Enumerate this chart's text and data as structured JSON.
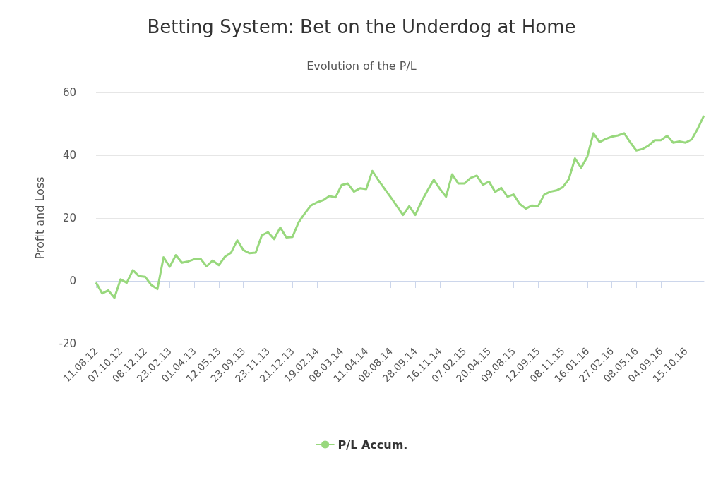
{
  "chart_data": {
    "type": "line",
    "title": "Betting System: Bet on the Underdog at Home",
    "subtitle": "Evolution of the P/L",
    "ylabel": "Profit and Loss",
    "categories": [
      "11.08.12",
      null,
      null,
      null,
      "07.10.12",
      null,
      null,
      null,
      "08.12.12",
      null,
      null,
      null,
      "23.02.13",
      null,
      null,
      null,
      "01.04.13",
      null,
      null,
      null,
      "12.05.13",
      null,
      null,
      null,
      "23.09.13",
      null,
      null,
      null,
      "23.11.13",
      null,
      null,
      null,
      "21.12.13",
      null,
      null,
      null,
      "19.02.14",
      null,
      null,
      null,
      "08.03.14",
      null,
      null,
      null,
      "11.04.14",
      null,
      null,
      null,
      "08.08.14",
      null,
      null,
      null,
      "28.09.14",
      null,
      null,
      null,
      "16.11.14",
      null,
      null,
      null,
      "07.02.15",
      null,
      null,
      null,
      "20.04.15",
      null,
      null,
      null,
      "09.08.15",
      null,
      null,
      null,
      "12.09.15",
      null,
      null,
      null,
      "08.11.15",
      null,
      null,
      null,
      "16.01.16",
      null,
      null,
      null,
      "27.02.16",
      null,
      null,
      null,
      "08.05.16",
      null,
      null,
      null,
      "04.09.16",
      null,
      null,
      null,
      "15.10.16",
      null,
      null,
      null
    ],
    "series": [
      {
        "name": "P/L Accum.",
        "color": "#98d87d",
        "values": [
          -0.5,
          -4,
          -3,
          -5.4,
          0.5,
          -0.6,
          3.4,
          1.5,
          1.3,
          -1.3,
          -2.6,
          7.5,
          4.5,
          8.2,
          5.8,
          6.2,
          6.9,
          7.1,
          4.6,
          6.5,
          5,
          7.7,
          9,
          12.9,
          9.8,
          8.8,
          9,
          14.5,
          15.5,
          13.3,
          17,
          13.8,
          14,
          18.7,
          21.5,
          24,
          25,
          25.7,
          27,
          26.6,
          30.5,
          31,
          28.4,
          29.5,
          29.2,
          35,
          32,
          29.3,
          26.6,
          23.8,
          21,
          23.8,
          21,
          25.3,
          28.8,
          32.2,
          29.3,
          26.8,
          33.9,
          31,
          31,
          32.8,
          33.5,
          30.6,
          31.6,
          28.3,
          29.6,
          26.8,
          27.5,
          24.5,
          23,
          24,
          23.8,
          27.5,
          28.4,
          28.8,
          29.8,
          32.4,
          39,
          36,
          39.5,
          47,
          44.2,
          45.2,
          45.9,
          46.3,
          47,
          44.1,
          41.5,
          42,
          43.1,
          44.8,
          44.8,
          46.2,
          44,
          44.4,
          44,
          45,
          48.5,
          52.6
        ]
      }
    ],
    "ylim": [
      -20,
      60
    ],
    "yticks": [
      -20,
      0,
      20,
      40,
      60
    ],
    "grid": "y",
    "legend": "bottom",
    "line_style": "solid"
  }
}
